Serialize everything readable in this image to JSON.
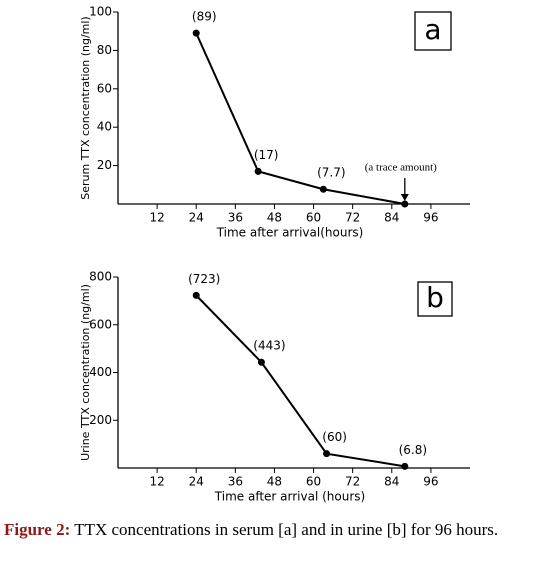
{
  "chart_data": [
    {
      "type": "line",
      "panel_label": "a",
      "xlabel": "Time after arrival(hours)",
      "ylabel": "Serum TTX concentration (ng/ml)",
      "xlim": [
        0,
        108
      ],
      "xticks": [
        12,
        24,
        36,
        48,
        60,
        72,
        84,
        96
      ],
      "ylim": [
        0,
        100
      ],
      "yticks": [
        20,
        40,
        60,
        80,
        100
      ],
      "x": [
        24,
        43,
        63,
        88
      ],
      "series": [
        {
          "color": "#000000",
          "values": [
            89,
            17,
            7.7,
            0
          ],
          "value_labels": [
            "(89)",
            "(17)",
            "(7.7)",
            "(a trace amount)"
          ]
        }
      ]
    },
    {
      "type": "line",
      "panel_label": "b",
      "xlabel": "Time after arrival (hours)",
      "ylabel": "Urine TTX concentration (ng/ml)",
      "xlim": [
        0,
        108
      ],
      "xticks": [
        12,
        24,
        36,
        48,
        60,
        72,
        84,
        96
      ],
      "ylim": [
        0,
        800
      ],
      "yticks": [
        200,
        400,
        600,
        800
      ],
      "x": [
        24,
        44,
        64,
        88
      ],
      "series": [
        {
          "color": "#000000",
          "values": [
            723,
            443,
            60,
            6.8
          ],
          "value_labels": [
            "(723)",
            "(443)",
            "(60)",
            "(6.8)"
          ]
        }
      ]
    }
  ],
  "caption": {
    "label": "Figure 2:",
    "text": "TTX concentrations in serum [a] and in urine [b] for 96 hours."
  }
}
